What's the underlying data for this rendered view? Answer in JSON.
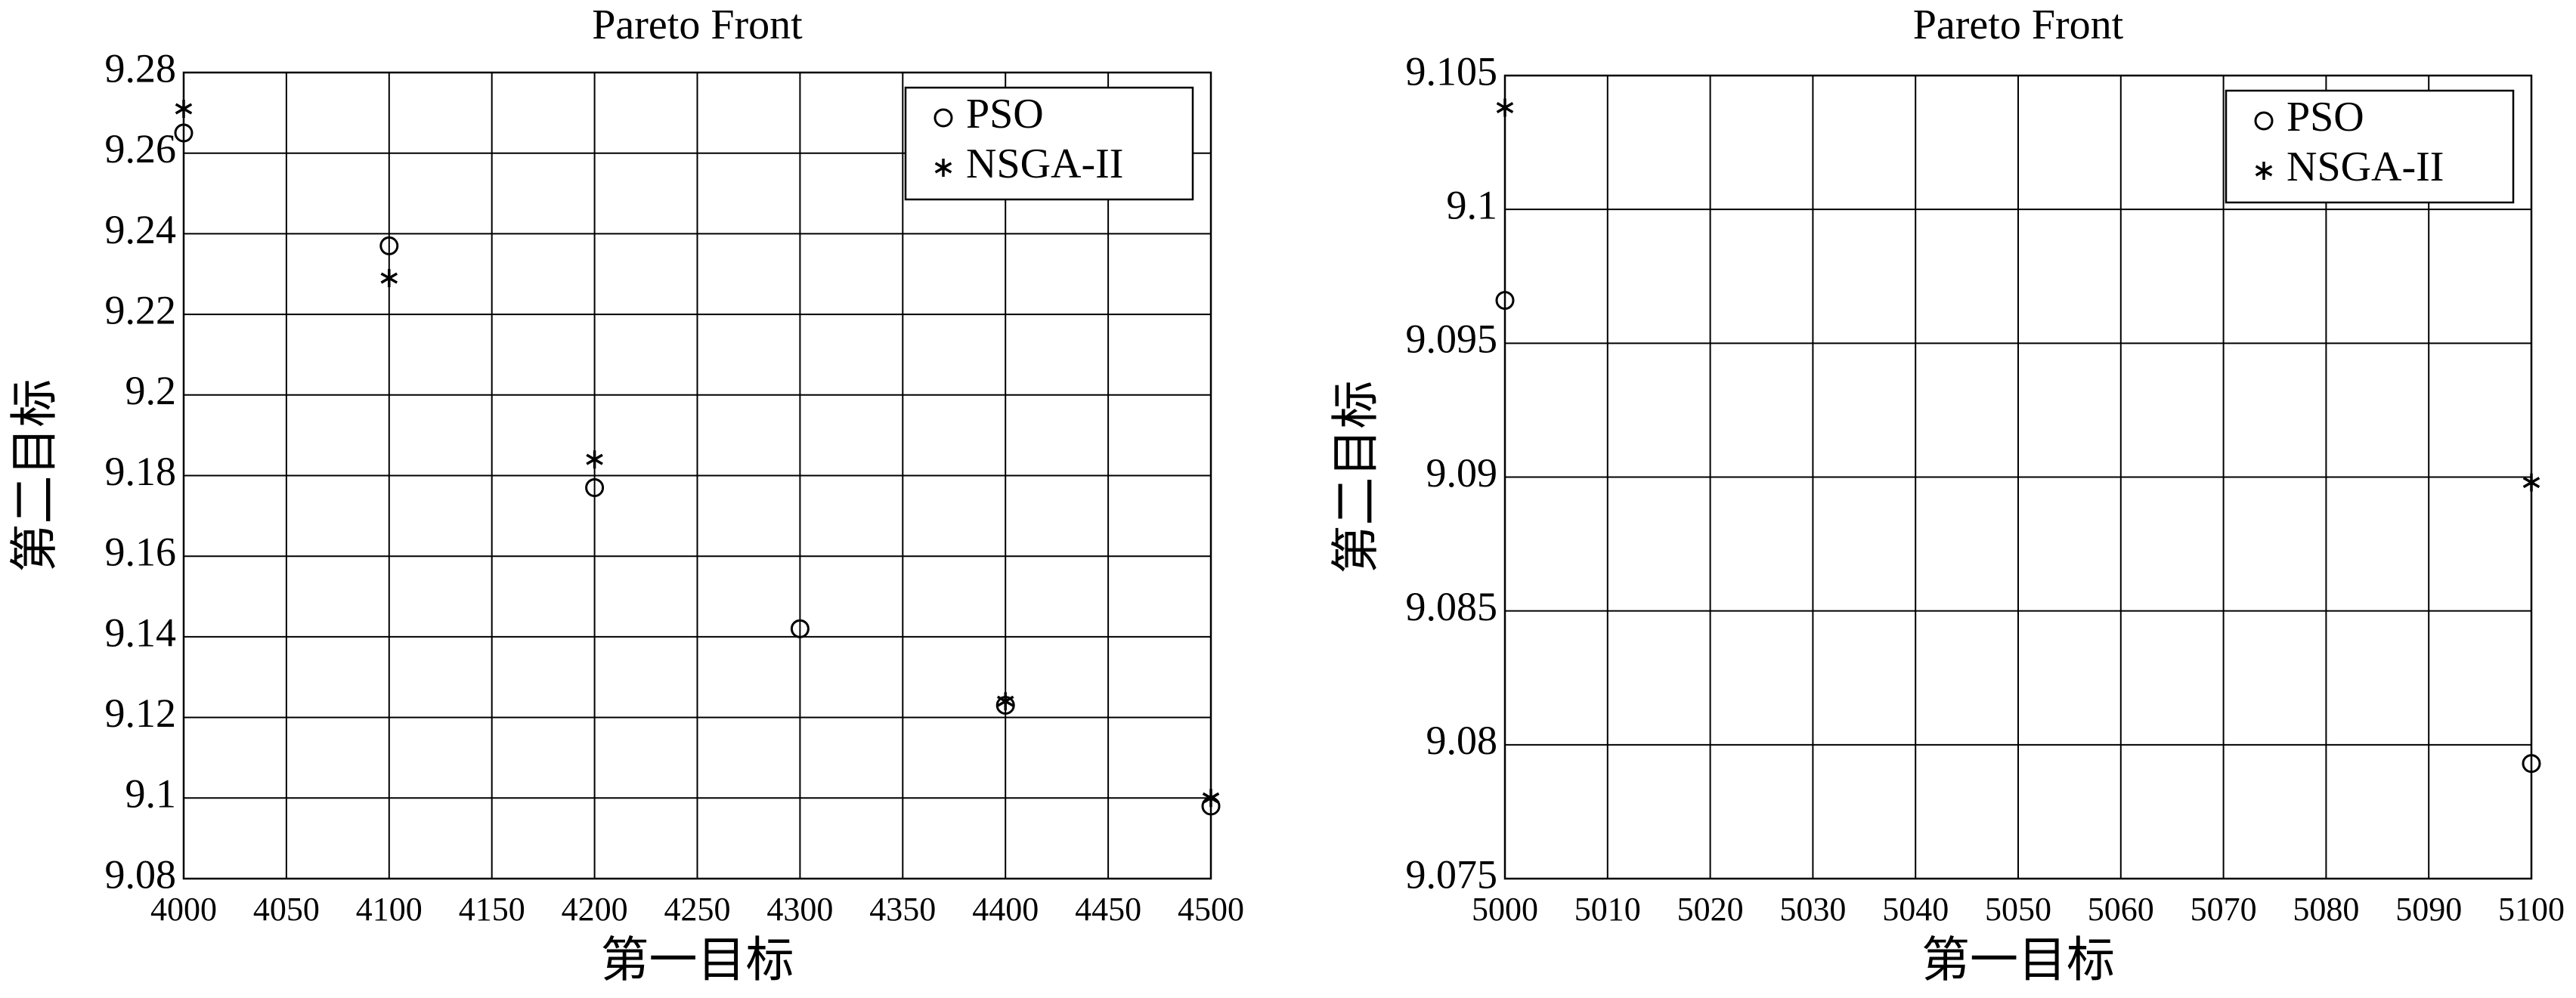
{
  "chart_data": [
    {
      "type": "scatter",
      "title": "Pareto Front",
      "x_label": "第一目标",
      "y_label": "第二目标",
      "xlim": [
        4000,
        4500
      ],
      "xticks": [
        4000,
        4050,
        4100,
        4150,
        4200,
        4250,
        4300,
        4350,
        4400,
        4450,
        4500
      ],
      "ylim": [
        9.08,
        9.28
      ],
      "yticks": [
        9.08,
        9.1,
        9.12,
        9.14,
        9.16,
        9.18,
        9.2,
        9.22,
        9.24,
        9.26,
        9.28
      ],
      "grid": true,
      "legend": "upper right",
      "series": [
        {
          "name": "PSO",
          "color": "#000000",
          "marker": "o",
          "x": [
            4000,
            4100,
            4200,
            4300,
            4400,
            4500
          ],
          "values": [
            9.265,
            9.237,
            9.177,
            9.142,
            9.123,
            9.098
          ]
        },
        {
          "name": "NSGA-II",
          "color": "#000000",
          "marker": "*",
          "x": [
            4000,
            4100,
            4200,
            4400,
            4500
          ],
          "values": [
            9.271,
            9.229,
            9.184,
            9.124,
            9.1
          ]
        }
      ]
    },
    {
      "type": "scatter",
      "title": "Pareto Front",
      "x_label": "第一目标",
      "y_label": "第二目标",
      "xlim": [
        5000,
        5100
      ],
      "xticks": [
        5000,
        5010,
        5020,
        5030,
        5040,
        5050,
        5060,
        5070,
        5080,
        5090,
        5100
      ],
      "ylim": [
        9.075,
        9.105
      ],
      "yticks": [
        9.075,
        9.08,
        9.085,
        9.09,
        9.095,
        9.1,
        9.105
      ],
      "grid": true,
      "legend": "upper right",
      "series": [
        {
          "name": "PSO",
          "color": "#000000",
          "marker": "o",
          "x": [
            5000,
            5100
          ],
          "values": [
            9.0966,
            9.0793
          ]
        },
        {
          "name": "NSGA-II",
          "color": "#000000",
          "marker": "*",
          "x": [
            5000,
            5100
          ],
          "values": [
            9.1038,
            9.0898
          ]
        }
      ]
    }
  ]
}
